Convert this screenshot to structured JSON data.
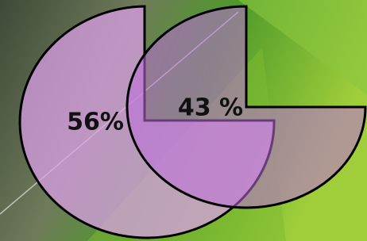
{
  "items": [
    {
      "label": "56%"
    },
    {
      "label": "43 %"
    }
  ]
}
